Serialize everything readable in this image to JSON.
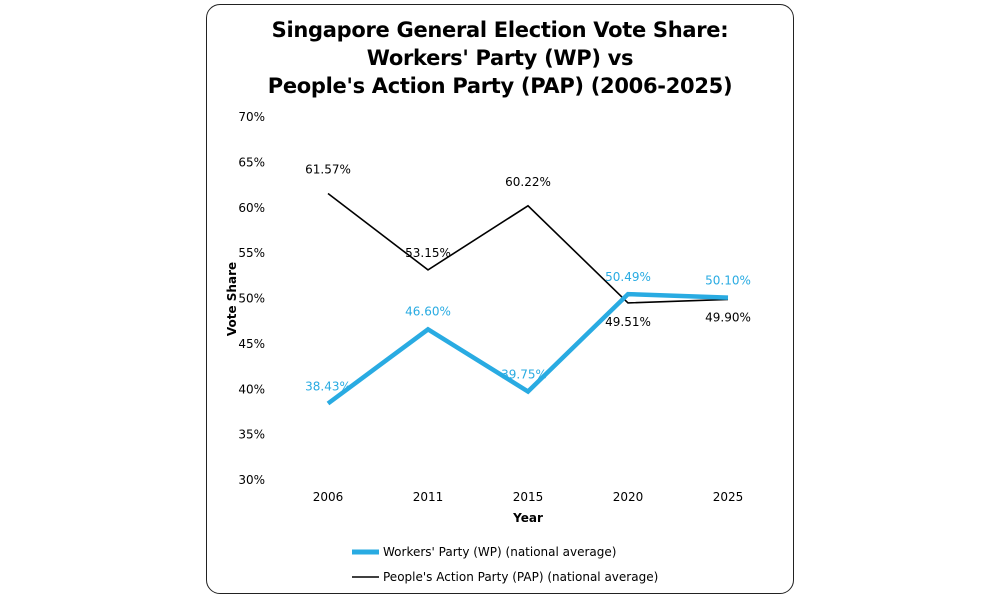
{
  "chart_data": {
    "type": "line",
    "title_lines": [
      "Singapore General Election Vote Share:",
      "Workers' Party (WP) vs",
      "People's Action Party (PAP) (2006-2025)"
    ],
    "xlabel": "Year",
    "ylabel": "Vote Share",
    "categories": [
      "2006",
      "2011",
      "2015",
      "2020",
      "2025"
    ],
    "ylim": [
      30,
      70
    ],
    "yticks": [
      30,
      35,
      40,
      45,
      50,
      55,
      60,
      65,
      70
    ],
    "ytick_labels": [
      "30%",
      "35%",
      "40%",
      "45%",
      "50%",
      "55%",
      "60%",
      "65%",
      "70%"
    ],
    "grid": false,
    "legend_position": "bottom",
    "series": [
      {
        "name": "Workers' Party (WP) (national average)",
        "values": [
          38.43,
          46.6,
          39.75,
          50.49,
          50.1
        ],
        "labels": [
          "38.43%",
          "46.60%",
          "39.75%",
          "50.49%",
          "50.10%"
        ],
        "color": "#29abe2"
      },
      {
        "name": "People's Action Party (PAP) (national average)",
        "values": [
          61.57,
          53.15,
          60.22,
          49.51,
          49.9
        ],
        "labels": [
          "61.57%",
          "53.15%",
          "60.22%",
          "49.51%",
          "49.90%"
        ],
        "color": "#000000"
      }
    ]
  }
}
